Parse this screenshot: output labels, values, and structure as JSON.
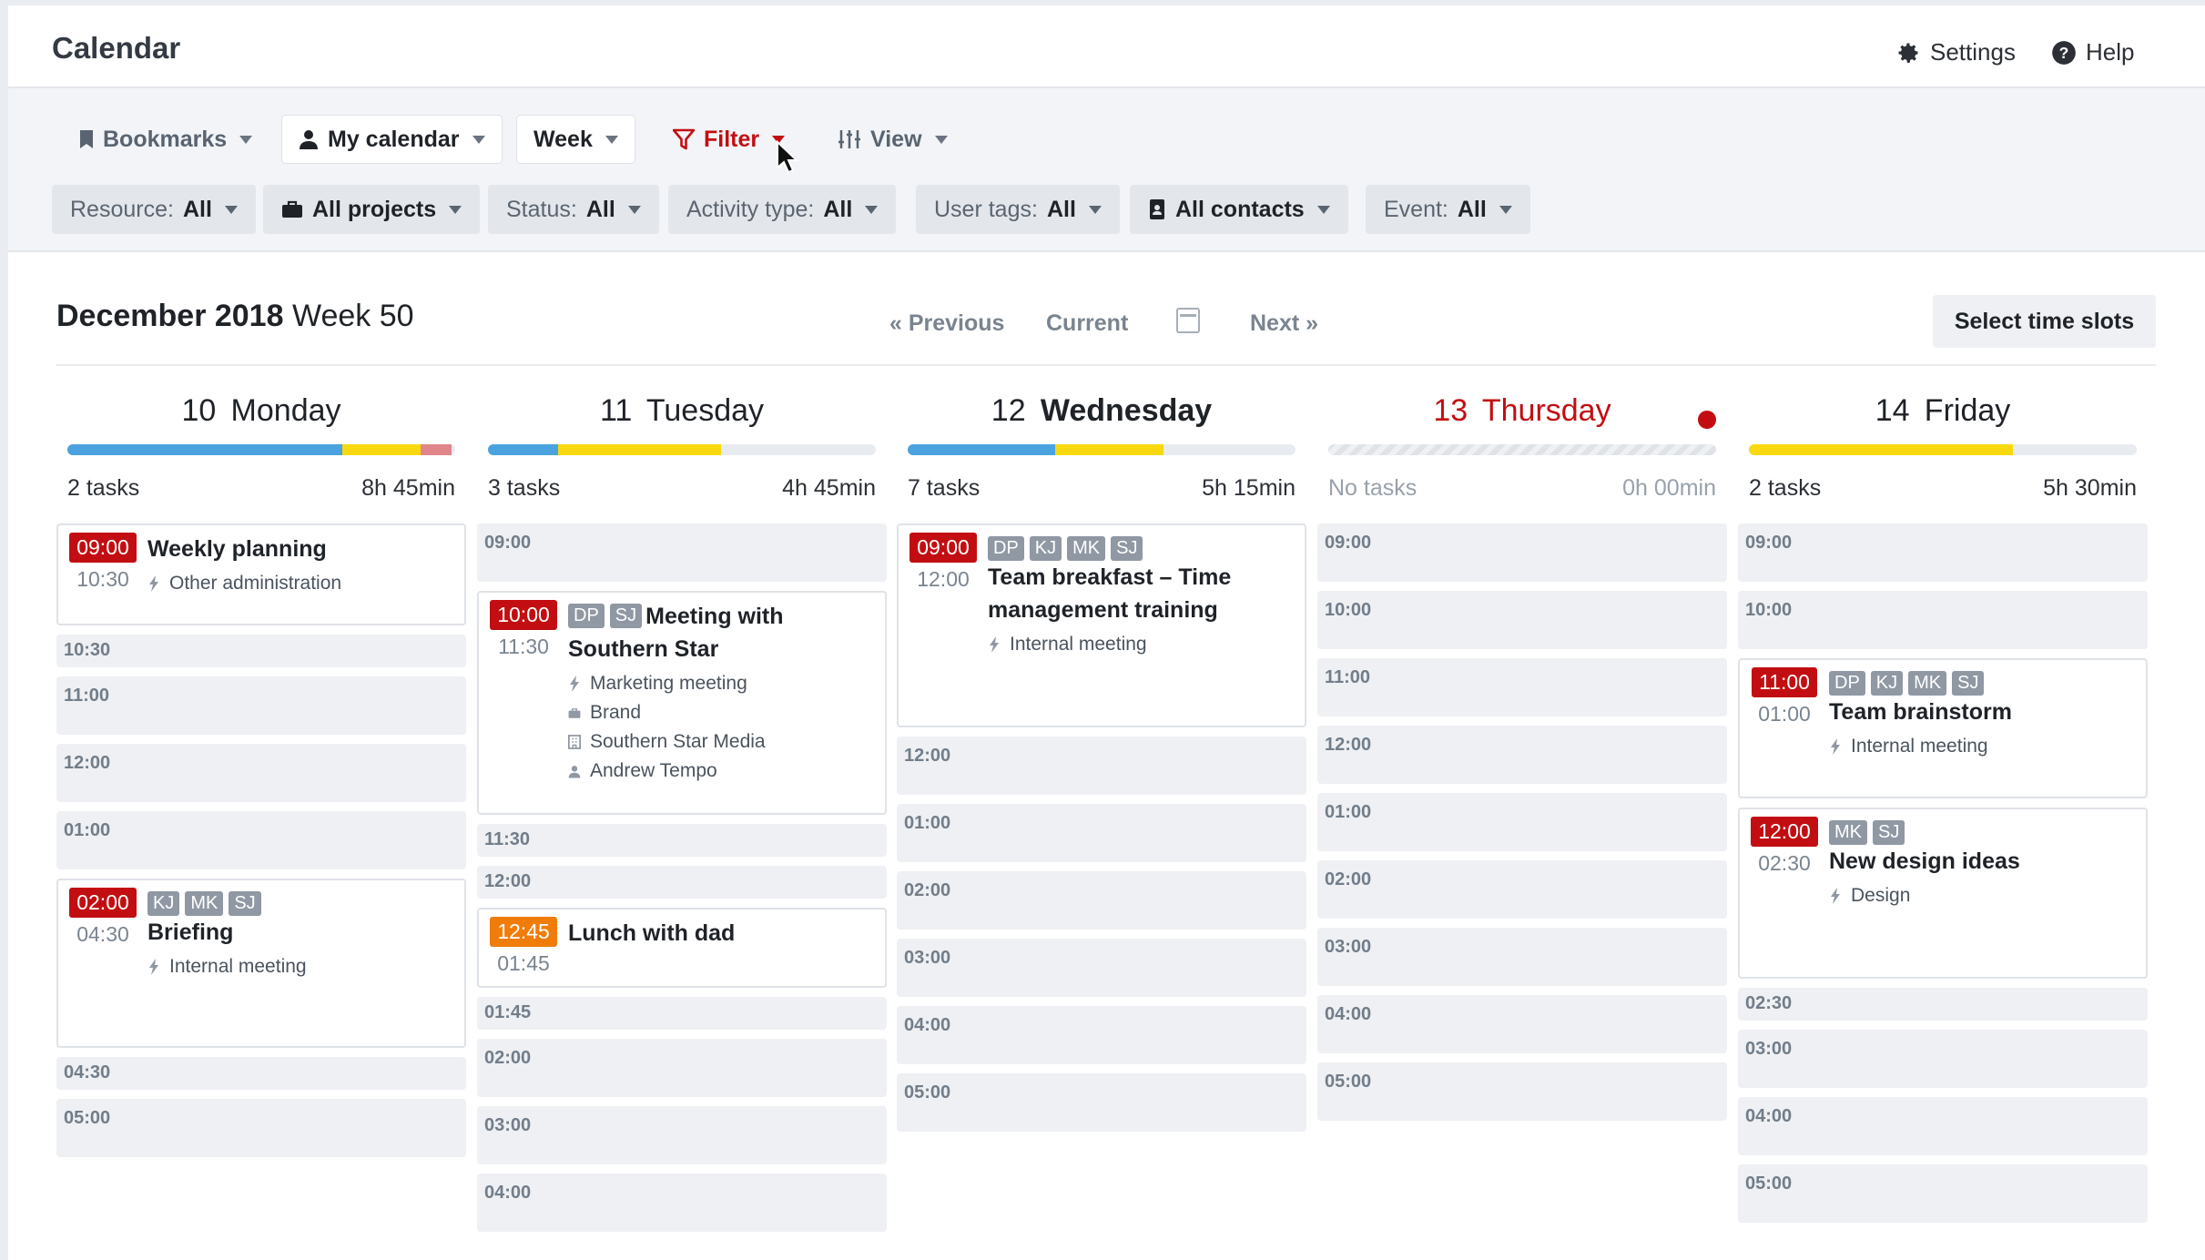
{
  "app": {
    "title": "Calendar",
    "settings_label": "Settings",
    "help_label": "Help"
  },
  "toolbar": {
    "bookmarks": "Bookmarks",
    "my_calendar": "My calendar",
    "week": "Week",
    "filter": "Filter",
    "view": "View"
  },
  "filters": [
    {
      "label": "Resource:",
      "value": "All"
    },
    {
      "label": "",
      "value": "All projects"
    },
    {
      "label": "Status:",
      "value": "All"
    },
    {
      "label": "Activity type:",
      "value": "All"
    },
    {
      "label": "User tags:",
      "value": "All"
    },
    {
      "label": "",
      "value": "All contacts"
    },
    {
      "label": "Event:",
      "value": "All"
    }
  ],
  "period": {
    "month_year": "December 2018",
    "week": "Week 50"
  },
  "nav": {
    "previous": "« Previous",
    "current": "Current",
    "next": "Next »",
    "select_slots": "Select time slots"
  },
  "colors": {
    "blue": "#4aa3df",
    "yellow": "#f8d90f",
    "red_light": "#e0858a",
    "accent": "#c20e12",
    "orange": "#f07c09"
  },
  "days": [
    {
      "num": "10",
      "name": "Monday",
      "tasks": "2 tasks",
      "hours": "8h 45min",
      "bar": [
        {
          "color": "blue",
          "pct": 71
        },
        {
          "color": "yellow",
          "pct": 20
        },
        {
          "color": "red_light",
          "pct": 8
        }
      ],
      "items": [
        {
          "type": "event",
          "start": "09:00",
          "end": "10:30",
          "title": "Weekly planning",
          "avatars": [],
          "meta": [
            {
              "icon": "bolt-icon",
              "text": "Other administration"
            }
          ],
          "h": 112
        },
        {
          "type": "slot",
          "time": "10:30",
          "half": true
        },
        {
          "type": "slot",
          "time": "11:00"
        },
        {
          "type": "slot",
          "time": "12:00"
        },
        {
          "type": "slot",
          "time": "01:00"
        },
        {
          "type": "event",
          "start": "02:00",
          "end": "04:30",
          "title": "Briefing",
          "avatars": [
            "KJ",
            "MK",
            "SJ"
          ],
          "meta": [
            {
              "icon": "bolt-icon",
              "text": "Internal meeting"
            }
          ],
          "h": 186
        },
        {
          "type": "slot",
          "time": "04:30",
          "half": true
        },
        {
          "type": "slot",
          "time": "05:00"
        }
      ]
    },
    {
      "num": "11",
      "name": "Tuesday",
      "tasks": "3 tasks",
      "hours": "4h 45min",
      "bar": [
        {
          "color": "blue",
          "pct": 18
        },
        {
          "color": "yellow",
          "pct": 42
        }
      ],
      "items": [
        {
          "type": "slot",
          "time": "09:00"
        },
        {
          "type": "event",
          "start": "10:00",
          "end": "11:30",
          "title": "Meeting with Southern Star",
          "avatars": [
            "DP",
            "SJ"
          ],
          "meta": [
            {
              "icon": "bolt-icon",
              "text": "Marketing meeting"
            },
            {
              "icon": "briefcase-icon",
              "text": "Brand"
            },
            {
              "icon": "building-icon",
              "text": "Southern Star Media"
            },
            {
              "icon": "person-icon",
              "text": "Andrew Tempo"
            }
          ],
          "h": 246
        },
        {
          "type": "slot",
          "time": "11:30",
          "half": true
        },
        {
          "type": "slot",
          "time": "12:00",
          "half": true
        },
        {
          "type": "event",
          "start": "12:45",
          "end": "01:45",
          "title": "Lunch with dad",
          "avatars": [],
          "meta": [],
          "h": 88,
          "orange": true
        },
        {
          "type": "slot",
          "time": "01:45",
          "half": true
        },
        {
          "type": "slot",
          "time": "02:00"
        },
        {
          "type": "slot",
          "time": "03:00"
        },
        {
          "type": "slot",
          "time": "04:00"
        }
      ]
    },
    {
      "num": "12",
      "name": "Wednesday",
      "tasks": "7 tasks",
      "hours": "5h 15min",
      "bold": true,
      "bar": [
        {
          "color": "blue",
          "pct": 38
        },
        {
          "color": "yellow",
          "pct": 28
        }
      ],
      "items": [
        {
          "type": "event",
          "start": "09:00",
          "end": "12:00",
          "title": "Team breakfast – Time management training",
          "avatars": [
            "DP",
            "KJ",
            "MK",
            "SJ"
          ],
          "meta": [
            {
              "icon": "bolt-icon",
              "text": "Internal meeting"
            }
          ],
          "h": 224
        },
        {
          "type": "slot",
          "time": "12:00"
        },
        {
          "type": "slot",
          "time": "01:00"
        },
        {
          "type": "slot",
          "time": "02:00"
        },
        {
          "type": "slot",
          "time": "03:00"
        },
        {
          "type": "slot",
          "time": "04:00"
        },
        {
          "type": "slot",
          "time": "05:00"
        }
      ]
    },
    {
      "num": "13",
      "name": "Thursday",
      "tasks": "No tasks",
      "hours": "0h 00min",
      "today": true,
      "empty": true,
      "bar": [],
      "items": [
        {
          "type": "slot",
          "time": "09:00"
        },
        {
          "type": "slot",
          "time": "10:00"
        },
        {
          "type": "slot",
          "time": "11:00"
        },
        {
          "type": "slot",
          "time": "12:00"
        },
        {
          "type": "slot",
          "time": "01:00"
        },
        {
          "type": "slot",
          "time": "02:00"
        },
        {
          "type": "slot",
          "time": "03:00"
        },
        {
          "type": "slot",
          "time": "04:00"
        },
        {
          "type": "slot",
          "time": "05:00"
        }
      ]
    },
    {
      "num": "14",
      "name": "Friday",
      "tasks": "2 tasks",
      "hours": "5h 30min",
      "bar": [
        {
          "color": "yellow",
          "pct": 68
        }
      ],
      "items": [
        {
          "type": "slot",
          "time": "09:00"
        },
        {
          "type": "slot",
          "time": "10:00"
        },
        {
          "type": "event",
          "start": "11:00",
          "end": "01:00",
          "title": "Team brainstorm",
          "avatars": [
            "DP",
            "KJ",
            "MK",
            "SJ"
          ],
          "meta": [
            {
              "icon": "bolt-icon",
              "text": "Internal meeting"
            }
          ],
          "h": 154
        },
        {
          "type": "event",
          "start": "12:00",
          "end": "02:30",
          "title": "New design ideas",
          "avatars": [
            "MK",
            "SJ"
          ],
          "meta": [
            {
              "icon": "bolt-icon",
              "text": "Design"
            }
          ],
          "h": 188
        },
        {
          "type": "slot",
          "time": "02:30",
          "half": true
        },
        {
          "type": "slot",
          "time": "03:00"
        },
        {
          "type": "slot",
          "time": "04:00"
        },
        {
          "type": "slot",
          "time": "05:00"
        }
      ]
    }
  ]
}
